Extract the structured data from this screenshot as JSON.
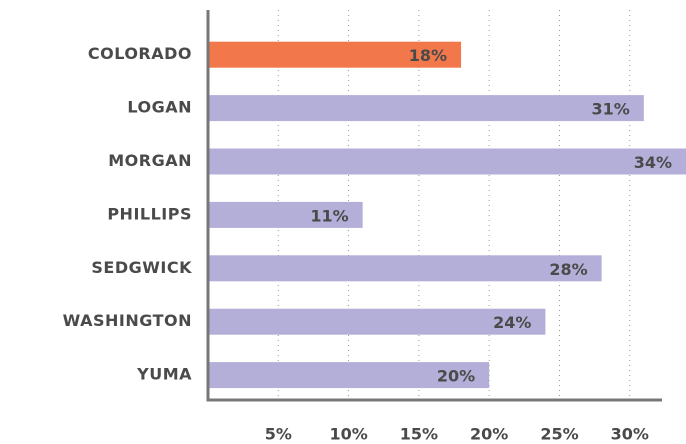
{
  "chart_data": {
    "type": "barh",
    "categories": [
      "COLORADO",
      "LOGAN",
      "MORGAN",
      "PHILLIPS",
      "SEDGWICK",
      "WASHINGTON",
      "YUMA"
    ],
    "values": [
      18,
      31,
      34,
      11,
      28,
      24,
      20
    ],
    "value_labels": [
      "18%",
      "31%",
      "34%",
      "11%",
      "28%",
      "24%",
      "20%"
    ],
    "colors": [
      "#f2784b",
      "#b4afd8",
      "#b4afd8",
      "#b4afd8",
      "#b4afd8",
      "#b4afd8",
      "#b4afd8"
    ],
    "xlim": [
      0,
      34
    ],
    "xticks": [
      {
        "value": 5,
        "label": "5%"
      },
      {
        "value": 10,
        "label": "10%"
      },
      {
        "value": 15,
        "label": "15%"
      },
      {
        "value": 20,
        "label": "20%"
      },
      {
        "value": 25,
        "label": "25%"
      },
      {
        "value": 30,
        "label": "30%"
      }
    ],
    "grid": true
  }
}
